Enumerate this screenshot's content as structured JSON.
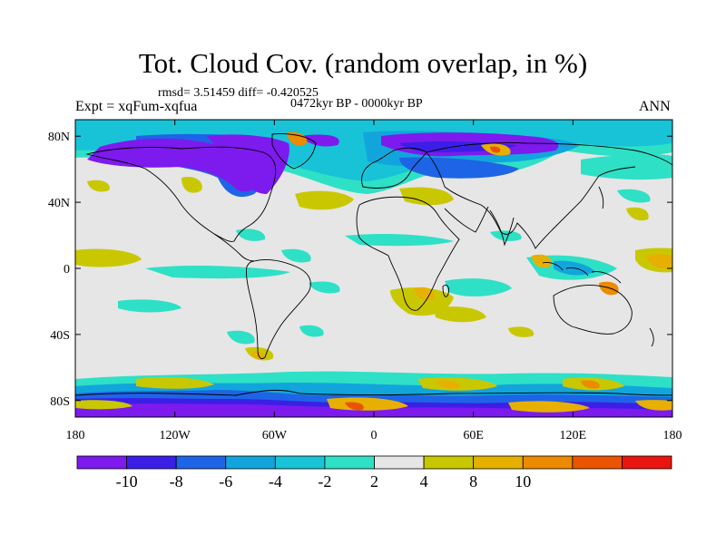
{
  "title": "Tot. Cloud Cov. (random overlap, in %)",
  "stats_line": "rmsd= 3.51459 diff= -0.420525",
  "period_line": "0472kyr BP - 0000kyr BP",
  "experiment_line": "Expt = xqFum-xqfua",
  "season": "ANN",
  "map": {
    "projection": "cylindrical equidistant",
    "lon_range": [
      -180,
      180
    ],
    "lat_range": [
      -90,
      90
    ],
    "background_value_color": "#e6e6e6",
    "lat_ticks": [
      {
        "value": 80,
        "label": "80N"
      },
      {
        "value": 40,
        "label": "40N"
      },
      {
        "value": 0,
        "label": "0"
      },
      {
        "value": -40,
        "label": "40S"
      },
      {
        "value": -80,
        "label": "80S"
      }
    ],
    "lon_ticks": [
      {
        "value": -180,
        "label": "180"
      },
      {
        "value": -120,
        "label": "120W"
      },
      {
        "value": -60,
        "label": "60W"
      },
      {
        "value": 0,
        "label": "0"
      },
      {
        "value": 60,
        "label": "60E"
      },
      {
        "value": 120,
        "label": "120E"
      },
      {
        "value": 180,
        "label": "180"
      }
    ]
  },
  "colorbar": {
    "colors": [
      "#7d1aee",
      "#3c1fe6",
      "#1e64e6",
      "#12a5dc",
      "#18c3d8",
      "#2ee0c6",
      "#e6e6e6",
      "#c9c800",
      "#e7b000",
      "#ec8a00",
      "#ea5400",
      "#e8160e"
    ],
    "labels": [
      "-10",
      "-8",
      "-6",
      "-4",
      "-2",
      "2",
      "4",
      "8",
      "10"
    ]
  }
}
